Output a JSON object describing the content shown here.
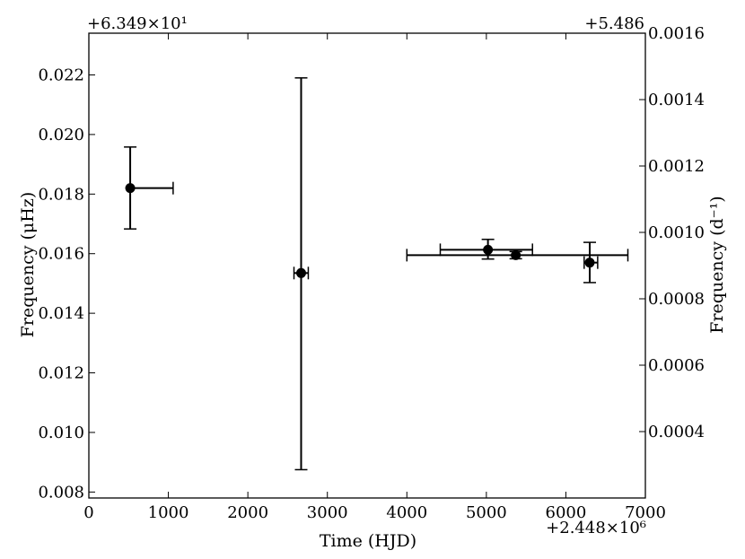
{
  "chart_data": {
    "type": "scatter",
    "title": "",
    "xlabel": "Time (HJD)",
    "ylabel_left": "Frequency (μHz)",
    "ylabel_right": "Frequency (d⁻¹)",
    "x_offset_label": "+2.448×10⁶",
    "y_left_offset_label": "+6.349×10¹",
    "y_right_offset_label": "+5.486",
    "xlim": [
      0,
      7000
    ],
    "ylim_left": [
      0.0078,
      0.0234
    ],
    "ylim_right": [
      0.0002,
      0.0016
    ],
    "x_ticks": [
      0,
      1000,
      2000,
      3000,
      4000,
      5000,
      6000,
      7000
    ],
    "x_tick_labels": [
      "0",
      "1000",
      "2000",
      "3000",
      "4000",
      "5000",
      "6000",
      "7000"
    ],
    "y_left_ticks": [
      0.008,
      0.01,
      0.012,
      0.014,
      0.016,
      0.018,
      0.02,
      0.022
    ],
    "y_left_tick_labels": [
      "0.008",
      "0.010",
      "0.012",
      "0.014",
      "0.016",
      "0.018",
      "0.020",
      "0.022"
    ],
    "y_right_ticks": [
      0.0004,
      0.0006,
      0.0008,
      0.001,
      0.0012,
      0.0014,
      0.0016
    ],
    "y_right_tick_labels": [
      "0.0004",
      "0.0006",
      "0.0008",
      "0.0010",
      "0.0012",
      "0.0014",
      "0.0016"
    ],
    "grid": false,
    "legend": "none",
    "marker_color": "#000000",
    "points": [
      {
        "x": 520,
        "y": 0.0182,
        "xerr": [
          520,
          1060
        ],
        "yerr": [
          0.01683,
          0.01958
        ]
      },
      {
        "x": 2670,
        "y": 0.01535,
        "xerr": [
          2580,
          2760
        ],
        "yerr": [
          0.00875,
          0.0219
        ]
      },
      {
        "x": 5020,
        "y": 0.01613,
        "xerr": [
          4420,
          5580
        ],
        "yerr": [
          0.01582,
          0.01648
        ]
      },
      {
        "x": 5370,
        "y": 0.01595,
        "xerr": [
          4000,
          6780
        ],
        "yerr": [
          0.01583,
          0.01607
        ]
      },
      {
        "x": 6300,
        "y": 0.0157,
        "xerr": [
          6230,
          6400
        ],
        "yerr": [
          0.01503,
          0.01638
        ]
      }
    ]
  }
}
